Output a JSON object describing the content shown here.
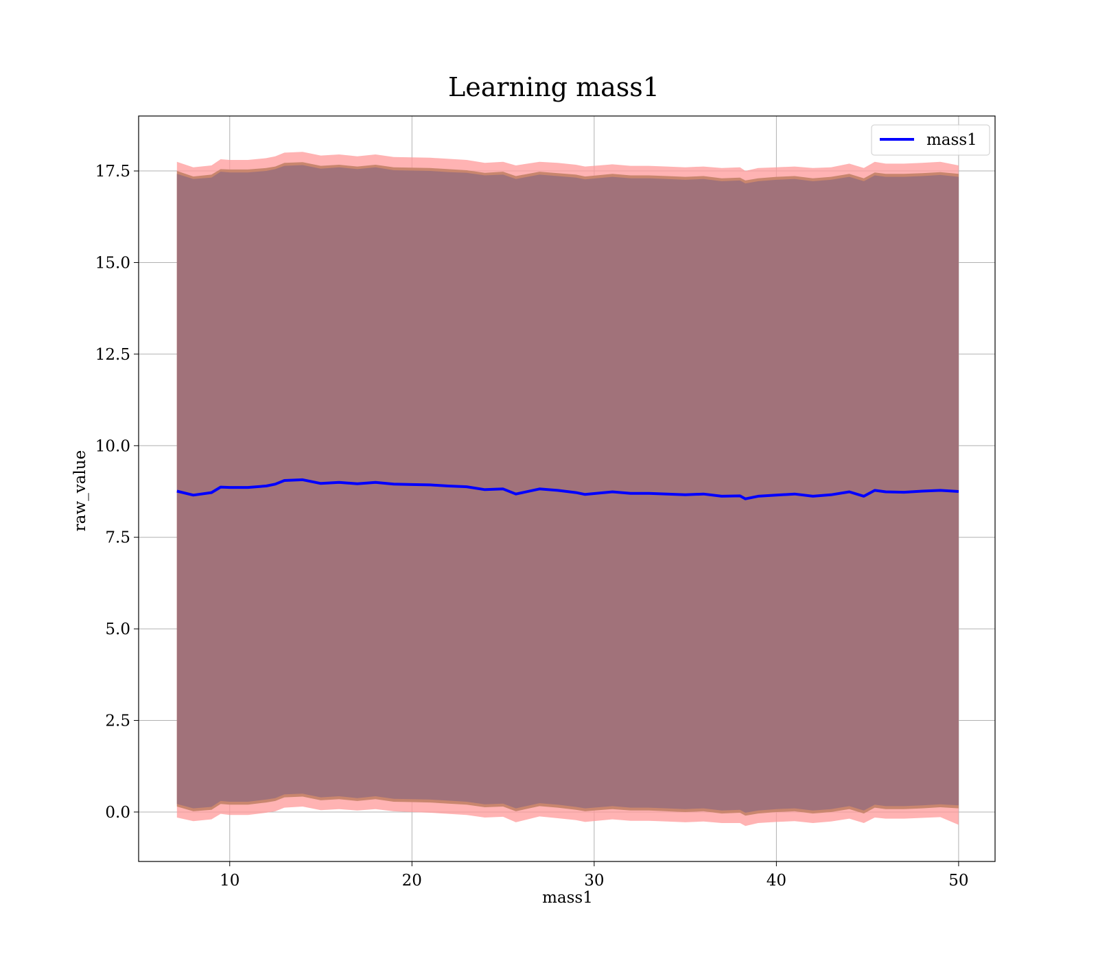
{
  "chart_data": {
    "type": "area",
    "title": "Learning mass1",
    "xlabel": "mass1",
    "ylabel": "raw_value",
    "xlim": [
      5,
      52
    ],
    "ylim": [
      -1.35,
      19
    ],
    "xticks": [
      10,
      20,
      30,
      40,
      50
    ],
    "yticks": [
      0.0,
      2.5,
      5.0,
      7.5,
      10.0,
      12.5,
      15.0,
      17.5
    ],
    "xtick_labels": [
      "10",
      "20",
      "30",
      "40",
      "50"
    ],
    "ytick_labels": [
      "0.0",
      "2.5",
      "5.0",
      "7.5",
      "10.0",
      "12.5",
      "15.0",
      "17.5"
    ],
    "grid": true,
    "legend": {
      "placement": "top-right",
      "entries": [
        "mass1"
      ]
    },
    "colors": {
      "line": "#0000ff",
      "outer_band": "#ff9999",
      "mid_band": "#c9866e",
      "inner_band": "#a1727a"
    },
    "x": [
      7.1,
      8,
      9,
      9.5,
      10,
      11,
      12,
      12.5,
      13,
      14,
      15,
      16,
      17,
      18,
      19,
      20,
      21,
      22,
      23,
      24,
      25,
      25.7,
      27,
      28,
      29,
      29.5,
      31,
      32,
      33,
      34,
      35,
      36,
      37,
      38,
      38.3,
      39,
      40,
      41,
      42,
      43,
      44,
      44.8,
      45.4,
      46,
      47,
      48,
      49,
      50
    ],
    "series": [
      {
        "name": "mass1",
        "role": "line",
        "values": [
          8.76,
          8.65,
          8.72,
          8.87,
          8.86,
          8.86,
          8.9,
          8.95,
          9.05,
          9.07,
          8.97,
          9.0,
          8.96,
          9.0,
          8.95,
          8.94,
          8.93,
          8.9,
          8.88,
          8.8,
          8.82,
          8.68,
          8.82,
          8.78,
          8.72,
          8.67,
          8.74,
          8.7,
          8.7,
          8.68,
          8.66,
          8.68,
          8.62,
          8.63,
          8.55,
          8.62,
          8.65,
          8.68,
          8.62,
          8.66,
          8.74,
          8.62,
          8.78,
          8.74,
          8.73,
          8.76,
          8.78,
          8.75
        ]
      },
      {
        "role": "outer_band_upper",
        "values": [
          17.75,
          17.6,
          17.65,
          17.82,
          17.8,
          17.8,
          17.85,
          17.9,
          18.0,
          18.02,
          17.92,
          17.95,
          17.9,
          17.95,
          17.88,
          17.87,
          17.86,
          17.83,
          17.8,
          17.72,
          17.75,
          17.65,
          17.75,
          17.72,
          17.67,
          17.62,
          17.68,
          17.64,
          17.64,
          17.62,
          17.6,
          17.62,
          17.58,
          17.6,
          17.5,
          17.58,
          17.6,
          17.62,
          17.58,
          17.6,
          17.7,
          17.58,
          17.75,
          17.7,
          17.7,
          17.72,
          17.75,
          17.65
        ]
      },
      {
        "role": "outer_band_lower",
        "values": [
          -0.15,
          -0.25,
          -0.2,
          -0.05,
          -0.08,
          -0.08,
          -0.02,
          0.02,
          0.12,
          0.15,
          0.05,
          0.08,
          0.04,
          0.08,
          0.02,
          0.0,
          -0.02,
          -0.05,
          -0.08,
          -0.15,
          -0.13,
          -0.28,
          -0.12,
          -0.17,
          -0.22,
          -0.27,
          -0.2,
          -0.24,
          -0.24,
          -0.26,
          -0.28,
          -0.26,
          -0.3,
          -0.3,
          -0.38,
          -0.3,
          -0.27,
          -0.25,
          -0.3,
          -0.26,
          -0.18,
          -0.3,
          -0.15,
          -0.18,
          -0.18,
          -0.16,
          -0.14,
          -0.35
        ]
      },
      {
        "role": "mid_band_upper",
        "values": [
          17.5,
          17.35,
          17.4,
          17.55,
          17.54,
          17.54,
          17.58,
          17.62,
          17.72,
          17.74,
          17.64,
          17.67,
          17.62,
          17.67,
          17.6,
          17.59,
          17.58,
          17.55,
          17.52,
          17.45,
          17.48,
          17.36,
          17.48,
          17.44,
          17.4,
          17.35,
          17.42,
          17.38,
          17.38,
          17.36,
          17.34,
          17.36,
          17.3,
          17.32,
          17.24,
          17.3,
          17.34,
          17.36,
          17.3,
          17.34,
          17.42,
          17.3,
          17.46,
          17.42,
          17.42,
          17.44,
          17.47,
          17.42
        ]
      },
      {
        "role": "mid_band_lower",
        "values": [
          0.15,
          0.02,
          0.06,
          0.22,
          0.2,
          0.2,
          0.26,
          0.3,
          0.4,
          0.42,
          0.32,
          0.35,
          0.3,
          0.35,
          0.28,
          0.27,
          0.26,
          0.23,
          0.2,
          0.13,
          0.15,
          0.02,
          0.16,
          0.12,
          0.06,
          0.02,
          0.08,
          0.04,
          0.04,
          0.02,
          0.0,
          0.02,
          -0.04,
          -0.02,
          -0.1,
          -0.04,
          0.0,
          0.02,
          -0.04,
          0.0,
          0.08,
          -0.04,
          0.12,
          0.08,
          0.08,
          0.1,
          0.13,
          0.1
        ]
      },
      {
        "role": "inner_band_upper",
        "values": [
          17.42,
          17.28,
          17.32,
          17.48,
          17.46,
          17.46,
          17.5,
          17.55,
          17.64,
          17.66,
          17.56,
          17.6,
          17.55,
          17.6,
          17.52,
          17.51,
          17.5,
          17.47,
          17.45,
          17.38,
          17.4,
          17.28,
          17.4,
          17.36,
          17.32,
          17.27,
          17.34,
          17.3,
          17.3,
          17.28,
          17.26,
          17.28,
          17.22,
          17.24,
          17.16,
          17.22,
          17.26,
          17.28,
          17.22,
          17.26,
          17.34,
          17.22,
          17.38,
          17.34,
          17.34,
          17.36,
          17.39,
          17.34
        ]
      },
      {
        "role": "inner_band_lower",
        "values": [
          0.22,
          0.1,
          0.14,
          0.3,
          0.28,
          0.28,
          0.34,
          0.38,
          0.48,
          0.5,
          0.4,
          0.43,
          0.38,
          0.43,
          0.36,
          0.35,
          0.34,
          0.31,
          0.28,
          0.21,
          0.23,
          0.1,
          0.24,
          0.2,
          0.14,
          0.1,
          0.16,
          0.12,
          0.12,
          0.1,
          0.08,
          0.1,
          0.04,
          0.06,
          -0.02,
          0.04,
          0.08,
          0.1,
          0.04,
          0.08,
          0.16,
          0.04,
          0.2,
          0.16,
          0.16,
          0.18,
          0.21,
          0.18
        ]
      }
    ]
  }
}
